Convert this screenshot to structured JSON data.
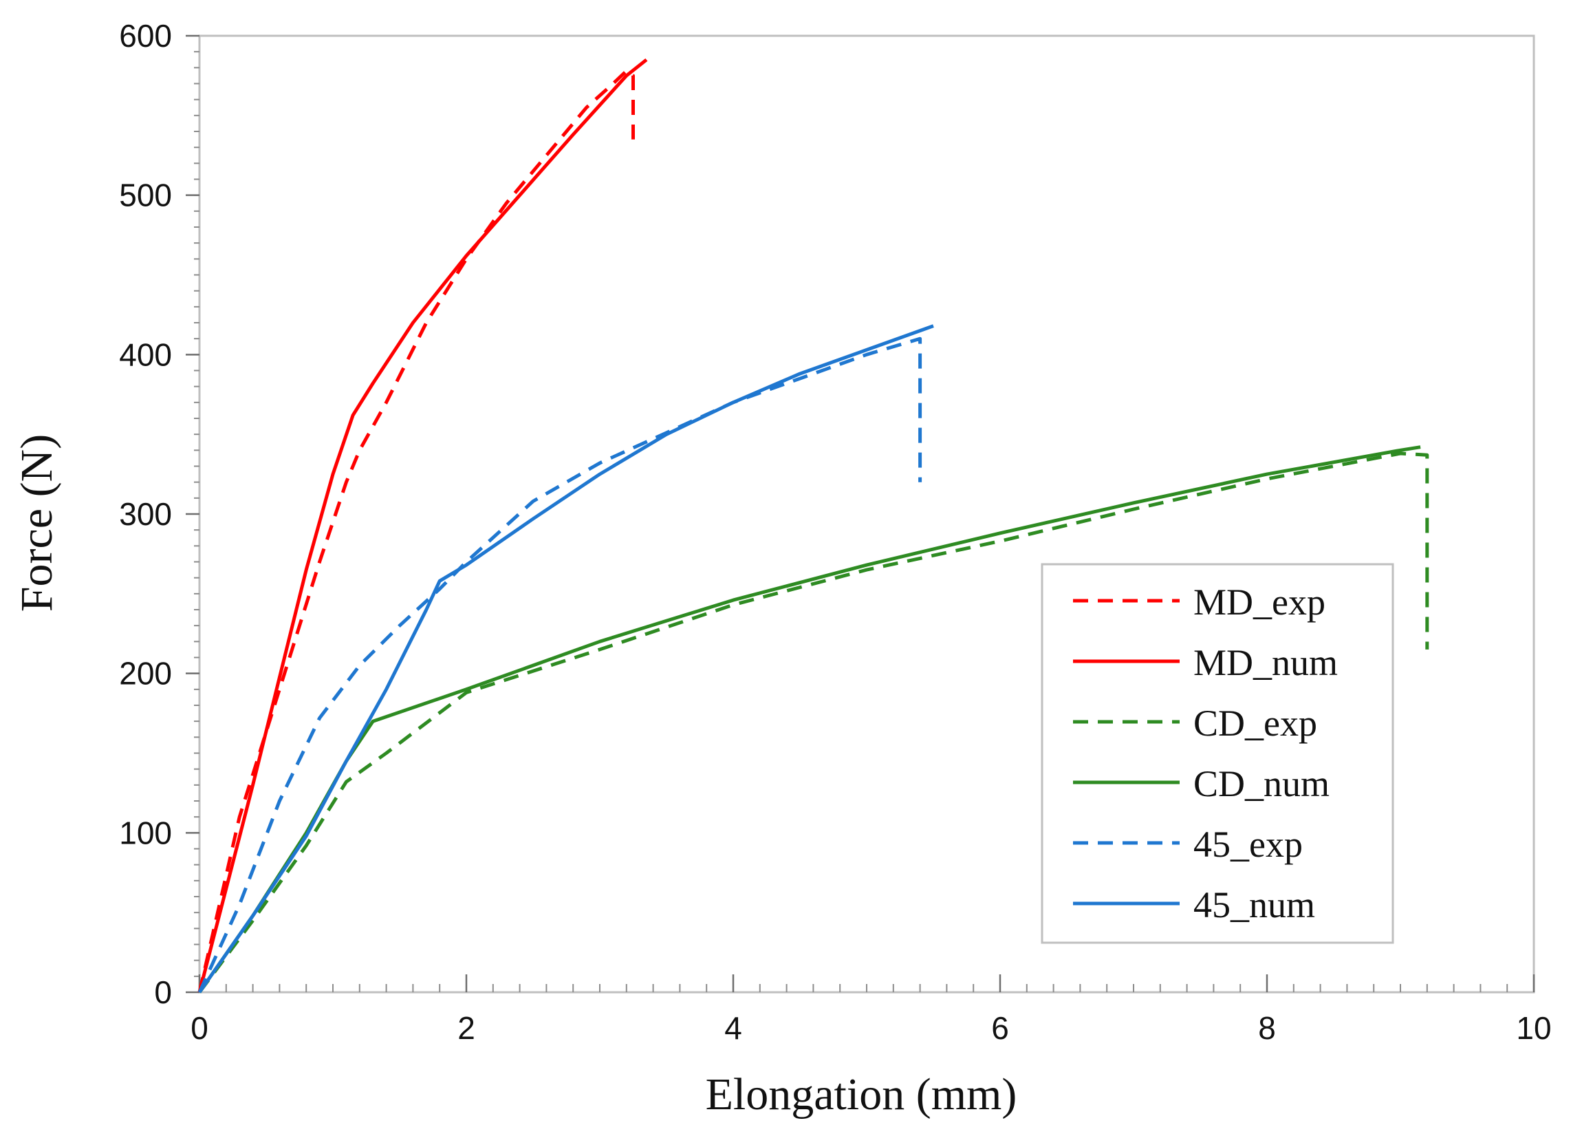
{
  "chart_data": {
    "type": "line",
    "title": "",
    "xlabel": "Elongation (mm)",
    "ylabel": "Force (N)",
    "xlim": [
      0,
      10
    ],
    "ylim": [
      0,
      600
    ],
    "xticks": [
      0,
      2,
      4,
      6,
      8,
      10
    ],
    "yticks": [
      0,
      100,
      200,
      300,
      400,
      500,
      600
    ],
    "grid": false,
    "legend_position": "right",
    "series": [
      {
        "name": "MD_exp",
        "color": "#ff0000",
        "dash": "dashed",
        "x": [
          0,
          0.3,
          0.6,
          0.9,
          1.1,
          1.2,
          1.4,
          1.7,
          2.0,
          2.3,
          2.6,
          2.9,
          3.1,
          3.2,
          3.25,
          3.25
        ],
        "y": [
          0,
          110,
          190,
          270,
          320,
          340,
          370,
          420,
          460,
          495,
          525,
          555,
          570,
          578,
          575,
          535
        ]
      },
      {
        "name": "MD_num",
        "color": "#ff0000",
        "dash": "solid",
        "x": [
          0,
          0.4,
          0.8,
          1.0,
          1.15,
          1.3,
          1.6,
          2.0,
          2.4,
          2.8,
          3.2,
          3.35
        ],
        "y": [
          0,
          130,
          265,
          325,
          362,
          382,
          420,
          462,
          500,
          538,
          575,
          585
        ]
      },
      {
        "name": "CD_exp",
        "color": "#2e8b22",
        "dash": "dashed",
        "x": [
          0,
          0.4,
          0.8,
          1.1,
          1.4,
          2.0,
          3.0,
          4.0,
          5.0,
          6.0,
          7.0,
          8.0,
          9.0,
          9.2,
          9.2
        ],
        "y": [
          0,
          45,
          92,
          132,
          150,
          188,
          215,
          243,
          265,
          283,
          303,
          322,
          338,
          337,
          215
        ]
      },
      {
        "name": "CD_num",
        "color": "#2e8b22",
        "dash": "solid",
        "x": [
          0,
          0.4,
          0.8,
          1.1,
          1.3,
          2.0,
          3.0,
          4.0,
          5.0,
          6.0,
          7.0,
          8.0,
          9.0,
          9.15
        ],
        "y": [
          0,
          48,
          100,
          145,
          170,
          190,
          220,
          246,
          268,
          288,
          307,
          325,
          340,
          342
        ]
      },
      {
        "name": "45_exp",
        "color": "#1f77d0",
        "dash": "dashed",
        "x": [
          0,
          0.3,
          0.6,
          0.9,
          1.2,
          1.5,
          1.8,
          2.0,
          2.5,
          3.0,
          3.5,
          4.0,
          4.5,
          5.0,
          5.4,
          5.4
        ],
        "y": [
          0,
          55,
          120,
          172,
          205,
          230,
          253,
          270,
          308,
          332,
          351,
          370,
          385,
          400,
          410,
          320
        ]
      },
      {
        "name": "45_num",
        "color": "#1f77d0",
        "dash": "solid",
        "x": [
          0,
          0.4,
          0.8,
          1.1,
          1.4,
          1.7,
          1.8,
          2.0,
          2.5,
          3.0,
          3.5,
          4.0,
          4.5,
          5.0,
          5.5
        ],
        "y": [
          0,
          48,
          98,
          145,
          190,
          240,
          258,
          268,
          297,
          325,
          350,
          370,
          388,
          403,
          418
        ]
      }
    ]
  }
}
